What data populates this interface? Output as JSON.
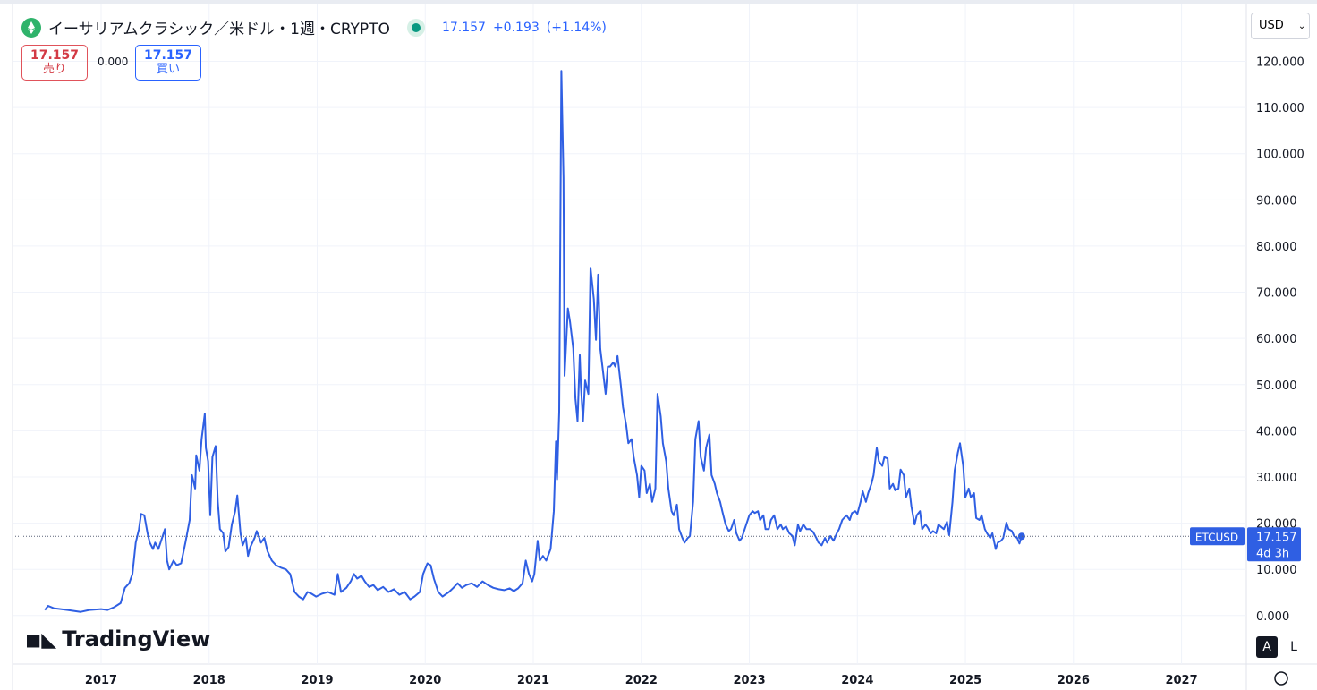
{
  "header": {
    "title": "イーサリアムクラシック／米ドル・1週・CRYPTO",
    "last": "17.157",
    "change": "+0.193",
    "change_pct": "(+1.14%)",
    "sell_price": "17.157",
    "sell_label": "売り",
    "spread": "0.000",
    "buy_price": "17.157",
    "buy_label": "買い",
    "currency": "USD",
    "auto_button": "A",
    "log_button": "L",
    "logo": "TradingView"
  },
  "chart_data": {
    "type": "line",
    "color": "#2f5fe3",
    "grid": true,
    "xlim": [
      2016.18,
      2027.6
    ],
    "xticks": [
      2017,
      2018,
      2019,
      2020,
      2021,
      2022,
      2023,
      2024,
      2025,
      2026,
      2027
    ],
    "ylim": [
      -10.5,
      132.3
    ],
    "yticks": [
      {
        "value": 0,
        "label": "0.000"
      },
      {
        "value": 10,
        "label": "10.000"
      },
      {
        "value": 20,
        "label": "20.000"
      },
      {
        "value": 30,
        "label": "30.000"
      },
      {
        "value": 40,
        "label": "40.000"
      },
      {
        "value": 50,
        "label": "50.000"
      },
      {
        "value": 60,
        "label": "60.000"
      },
      {
        "value": 70,
        "label": "70.000"
      },
      {
        "value": 80,
        "label": "80.000"
      },
      {
        "value": 90,
        "label": "90.000"
      },
      {
        "value": 100,
        "label": "100.000"
      },
      {
        "value": 110,
        "label": "110.000"
      },
      {
        "value": 120,
        "label": "120.000"
      }
    ],
    "price_line": {
      "symbol": "ETCUSD",
      "value": 17.157,
      "countdown": "4d 3h"
    },
    "x": [
      2016.48,
      2016.51,
      2016.56,
      2016.69,
      2016.81,
      2016.89,
      2017.0,
      2017.06,
      2017.12,
      2017.18,
      2017.22,
      2017.26,
      2017.29,
      2017.32,
      2017.35,
      2017.37,
      2017.4,
      2017.43,
      2017.45,
      2017.48,
      2017.5,
      2017.53,
      2017.55,
      2017.59,
      2017.61,
      2017.63,
      2017.67,
      2017.7,
      2017.74,
      2017.78,
      2017.82,
      2017.84,
      2017.87,
      2017.88,
      2017.91,
      2017.93,
      2017.96,
      2017.97,
      2017.99,
      2018.01,
      2018.03,
      2018.06,
      2018.08,
      2018.1,
      2018.13,
      2018.15,
      2018.18,
      2018.21,
      2018.24,
      2018.26,
      2018.29,
      2018.31,
      2018.34,
      2018.36,
      2018.38,
      2018.42,
      2018.44,
      2018.48,
      2018.51,
      2018.54,
      2018.58,
      2018.62,
      2018.67,
      2018.71,
      2018.75,
      2018.79,
      2018.83,
      2018.87,
      2018.91,
      2018.95,
      2018.99,
      2019.04,
      2019.1,
      2019.16,
      2019.19,
      2019.22,
      2019.27,
      2019.31,
      2019.34,
      2019.37,
      2019.41,
      2019.44,
      2019.48,
      2019.52,
      2019.56,
      2019.61,
      2019.66,
      2019.71,
      2019.76,
      2019.81,
      2019.86,
      2019.9,
      2019.95,
      2019.98,
      2020.02,
      2020.05,
      2020.08,
      2020.12,
      2020.16,
      2020.22,
      2020.26,
      2020.3,
      2020.34,
      2020.38,
      2020.43,
      2020.48,
      2020.53,
      2020.58,
      2020.63,
      2020.68,
      2020.73,
      2020.78,
      2020.82,
      2020.86,
      2020.9,
      2020.93,
      2020.96,
      2020.99,
      2021.01,
      2021.04,
      2021.06,
      2021.09,
      2021.12,
      2021.16,
      2021.19,
      2021.21,
      2021.22,
      2021.24,
      2021.26,
      2021.28,
      2021.29,
      2021.32,
      2021.34,
      2021.37,
      2021.39,
      2021.41,
      2021.43,
      2021.44,
      2021.46,
      2021.48,
      2021.51,
      2021.53,
      2021.56,
      2021.58,
      2021.6,
      2021.62,
      2021.64,
      2021.67,
      2021.69,
      2021.71,
      2021.74,
      2021.76,
      2021.78,
      2021.81,
      2021.83,
      2021.86,
      2021.88,
      2021.91,
      2021.93,
      2021.96,
      2021.98,
      2022.0,
      2022.03,
      2022.05,
      2022.08,
      2022.1,
      2022.13,
      2022.15,
      2022.18,
      2022.2,
      2022.23,
      2022.25,
      2022.28,
      2022.3,
      2022.33,
      2022.35,
      2022.38,
      2022.4,
      2022.43,
      2022.45,
      2022.48,
      2022.5,
      2022.53,
      2022.55,
      2022.58,
      2022.6,
      2022.63,
      2022.65,
      2022.68,
      2022.7,
      2022.73,
      2022.75,
      2022.78,
      2022.81,
      2022.83,
      2022.86,
      2022.88,
      2022.91,
      2022.93,
      2023.0,
      2023.03,
      2023.05,
      2023.08,
      2023.1,
      2023.13,
      2023.15,
      2023.18,
      2023.2,
      2023.23,
      2023.26,
      2023.29,
      2023.31,
      2023.34,
      2023.37,
      2023.4,
      2023.42,
      2023.45,
      2023.47,
      2023.5,
      2023.53,
      2023.56,
      2023.59,
      2023.62,
      2023.64,
      2023.67,
      2023.7,
      2023.72,
      2023.75,
      2023.78,
      2023.81,
      2023.83,
      2023.86,
      2023.9,
      2023.93,
      2023.95,
      2023.98,
      2024.0,
      2024.03,
      2024.05,
      2024.08,
      2024.1,
      2024.13,
      2024.15,
      2024.18,
      2024.2,
      2024.23,
      2024.25,
      2024.28,
      2024.3,
      2024.33,
      2024.35,
      2024.38,
      2024.4,
      2024.43,
      2024.45,
      2024.48,
      2024.5,
      2024.53,
      2024.55,
      2024.58,
      2024.6,
      2024.63,
      2024.65,
      2024.68,
      2024.7,
      2024.73,
      2024.75,
      2024.78,
      2024.8,
      2024.83,
      2024.85,
      2024.88,
      2024.9,
      2024.93,
      2024.95,
      2024.98,
      2025.0,
      2025.03,
      2025.05,
      2025.08,
      2025.1,
      2025.13,
      2025.15,
      2025.18,
      2025.2,
      2025.23,
      2025.25,
      2025.28,
      2025.3,
      2025.33,
      2025.35,
      2025.38,
      2025.4,
      2025.43,
      2025.45,
      2025.48,
      2025.5,
      2025.52
    ],
    "values": [
      1.2,
      2.1,
      1.6,
      1.2,
      0.8,
      1.2,
      1.4,
      1.2,
      1.8,
      2.7,
      6.0,
      7.0,
      9.0,
      15.8,
      18.7,
      22.0,
      21.7,
      17.8,
      15.8,
      14.4,
      15.8,
      14.4,
      15.8,
      18.7,
      11.9,
      10.0,
      11.9,
      10.9,
      11.3,
      15.8,
      20.7,
      30.4,
      27.5,
      34.7,
      31.4,
      38.2,
      43.7,
      36.3,
      33.4,
      21.7,
      34.3,
      36.7,
      24.6,
      18.7,
      17.8,
      13.9,
      14.8,
      19.7,
      22.6,
      26.0,
      17.8,
      15.2,
      16.8,
      12.9,
      14.8,
      16.8,
      18.3,
      15.8,
      16.8,
      13.9,
      11.9,
      10.9,
      10.3,
      10.0,
      9.0,
      5.1,
      4.1,
      3.5,
      5.1,
      4.7,
      4.1,
      4.7,
      5.1,
      4.5,
      9.0,
      5.1,
      6.0,
      7.4,
      9.0,
      8.0,
      8.6,
      7.4,
      6.2,
      6.6,
      5.5,
      6.2,
      5.1,
      5.7,
      4.5,
      5.1,
      3.5,
      4.1,
      5.1,
      9.0,
      11.3,
      10.9,
      8.0,
      5.1,
      4.1,
      5.1,
      6.0,
      7.0,
      6.0,
      6.6,
      7.0,
      6.2,
      7.4,
      6.6,
      6.0,
      5.7,
      5.5,
      5.9,
      5.3,
      5.9,
      7.0,
      11.9,
      9.0,
      7.4,
      9.0,
      16.2,
      11.9,
      12.9,
      11.9,
      14.4,
      22.6,
      37.7,
      29.5,
      44.1,
      117.9,
      94.8,
      51.9,
      66.5,
      63.6,
      57.8,
      47.0,
      42.1,
      56.4,
      50.0,
      42.1,
      50.9,
      48.0,
      75.3,
      68.5,
      59.7,
      73.8,
      57.8,
      53.9,
      48.0,
      53.9,
      53.9,
      54.8,
      53.9,
      56.2,
      50.0,
      45.1,
      41.2,
      37.3,
      38.2,
      34.3,
      30.4,
      25.6,
      32.4,
      31.4,
      26.5,
      28.5,
      24.6,
      27.5,
      48.0,
      43.1,
      37.3,
      33.4,
      27.5,
      22.6,
      21.7,
      24.0,
      18.7,
      16.8,
      15.8,
      16.8,
      17.2,
      24.6,
      38.2,
      42.1,
      34.3,
      31.4,
      36.3,
      39.2,
      30.4,
      28.5,
      26.5,
      24.6,
      22.6,
      19.7,
      18.3,
      18.7,
      20.7,
      17.8,
      16.2,
      16.8,
      21.7,
      22.6,
      22.2,
      22.6,
      20.7,
      21.7,
      18.7,
      18.7,
      20.7,
      21.7,
      18.7,
      19.7,
      18.7,
      19.3,
      17.8,
      17.2,
      15.2,
      19.7,
      18.3,
      19.7,
      18.7,
      18.7,
      18.1,
      16.8,
      15.8,
      15.2,
      16.8,
      15.8,
      17.2,
      16.2,
      17.8,
      18.7,
      20.7,
      21.7,
      20.7,
      22.2,
      22.6,
      22.0,
      24.6,
      26.9,
      24.6,
      26.5,
      28.5,
      30.4,
      36.3,
      33.4,
      32.4,
      34.3,
      34.0,
      27.5,
      28.5,
      27.1,
      27.5,
      31.6,
      30.4,
      25.6,
      27.5,
      23.6,
      19.7,
      21.7,
      22.6,
      18.7,
      19.7,
      19.1,
      17.8,
      18.3,
      17.8,
      19.7,
      19.1,
      18.7,
      20.3,
      17.4,
      24.6,
      31.4,
      35.3,
      37.3,
      32.4,
      25.6,
      27.5,
      25.6,
      26.5,
      21.1,
      20.7,
      21.7,
      18.7,
      17.8,
      16.8,
      17.8,
      14.4,
      15.8,
      16.2,
      16.8,
      20.1,
      18.7,
      18.3,
      17.2,
      16.8,
      15.6,
      17.157
    ]
  }
}
